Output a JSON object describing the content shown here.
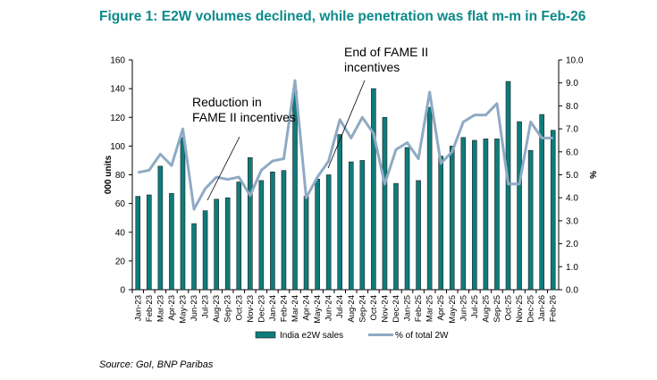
{
  "title": "Figure 1: E2W volumes declined, while penetration was flat m-m in Feb-26",
  "source": "Source: GoI, BNP Paribas",
  "chart_data": {
    "type": "bar+line",
    "categories": [
      "Jan-23",
      "Feb-23",
      "Mar-23",
      "Apr-23",
      "May-23",
      "Jun-23",
      "Jul-23",
      "Aug-23",
      "Sep-23",
      "Oct-23",
      "Nov-23",
      "Dec-23",
      "Jan-24",
      "Feb-24",
      "Mar-24",
      "Apr-24",
      "May-24",
      "Jun-24",
      "Jul-24",
      "Aug-24",
      "Sep-24",
      "Oct-24",
      "Nov-24",
      "Dec-24",
      "Jan-25",
      "Feb-25",
      "Mar-25",
      "Apr-25",
      "May-25",
      "Jun-25",
      "Jul-25",
      "Aug-25",
      "Sep-25",
      "Oct-25",
      "Nov-25",
      "Dec-25",
      "Jan-26",
      "Feb-26"
    ],
    "series": [
      {
        "name": "India e2W sales",
        "type": "bar",
        "axis": "left",
        "color": "#0e7c7b",
        "values": [
          65,
          66,
          86,
          67,
          106,
          46,
          55,
          63,
          64,
          75,
          92,
          76,
          82,
          83,
          138,
          65,
          77,
          80,
          108,
          89,
          90,
          140,
          120,
          74,
          99,
          76,
          127,
          93,
          100,
          106,
          104,
          105,
          105,
          145,
          117,
          97,
          122,
          111
        ]
      },
      {
        "name": "% of total 2W",
        "type": "line",
        "axis": "right",
        "color": "#8faac4",
        "values": [
          5.1,
          5.2,
          5.9,
          5.4,
          7.0,
          3.5,
          4.4,
          4.9,
          4.8,
          4.9,
          4.1,
          5.2,
          5.6,
          5.7,
          9.1,
          4.0,
          4.9,
          5.6,
          7.4,
          6.6,
          7.5,
          6.8,
          4.6,
          6.1,
          6.4,
          5.7,
          8.6,
          5.5,
          6.0,
          7.3,
          7.6,
          7.6,
          8.1,
          4.6,
          4.6,
          7.3,
          6.6,
          6.6
        ]
      }
    ],
    "ylabel_left": "000 units",
    "ylabel_right": "%",
    "ylim_left": [
      0,
      160
    ],
    "ylim_right": [
      0,
      10
    ],
    "yticks_left": [
      "0",
      "20",
      "40",
      "60",
      "80",
      "100",
      "120",
      "140",
      "160"
    ],
    "yticks_right": [
      "0.0",
      "1.0",
      "2.0",
      "3.0",
      "4.0",
      "5.0",
      "6.0",
      "7.0",
      "8.0",
      "9.0",
      "10.0"
    ],
    "grid": false,
    "legend_position": "bottom",
    "annotations": [
      {
        "lines": [
          "Reduction in",
          "FAME II incentives"
        ],
        "at": "Jun-23"
      },
      {
        "lines": [
          "End of FAME II",
          "incentives"
        ],
        "at": "Apr-24"
      }
    ]
  }
}
